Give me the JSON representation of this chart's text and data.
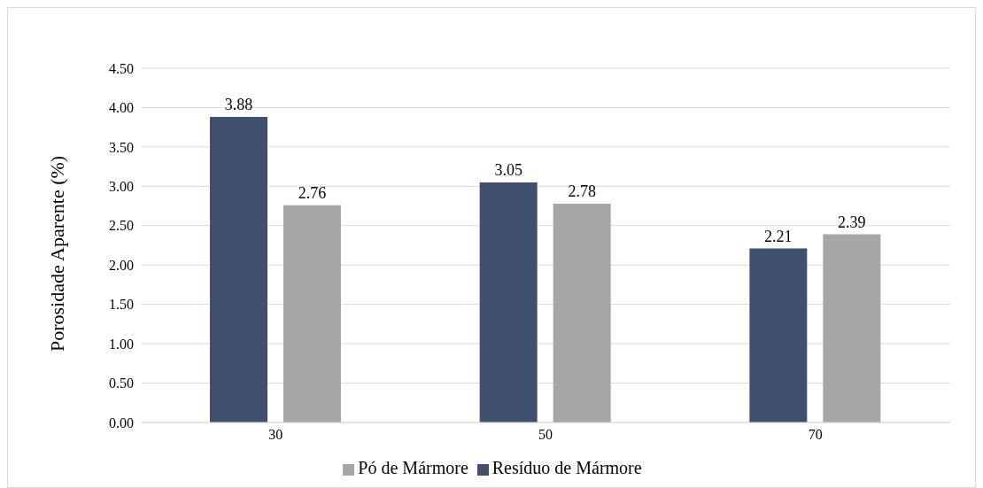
{
  "chart_data": {
    "type": "bar",
    "ylabel": "Porosidade Aparente (%)",
    "categories": [
      "30",
      "50",
      "70"
    ],
    "series": [
      {
        "name": "Resíduo de Mármore",
        "color": "#3f4f6e",
        "values": [
          3.88,
          3.05,
          2.21
        ]
      },
      {
        "name": "Pó de Mármore",
        "color": "#a6a6a6",
        "values": [
          2.76,
          2.78,
          2.39
        ]
      }
    ],
    "ylim": [
      0,
      4.5
    ],
    "yticks": [
      {
        "value": 0,
        "label": "0.00"
      },
      {
        "value": 0.5,
        "label": "0.50"
      },
      {
        "value": 1,
        "label": "1.00"
      },
      {
        "value": 1.5,
        "label": "1.50"
      },
      {
        "value": 2,
        "label": "2.00"
      },
      {
        "value": 2.5,
        "label": "2.50"
      },
      {
        "value": 3,
        "label": "3.00"
      },
      {
        "value": 3.5,
        "label": "3.50"
      },
      {
        "value": 4,
        "label": "4.00"
      },
      {
        "value": 4.5,
        "label": "4.50"
      }
    ],
    "grid": "y",
    "legend": "bottom",
    "data_labels": true
  }
}
